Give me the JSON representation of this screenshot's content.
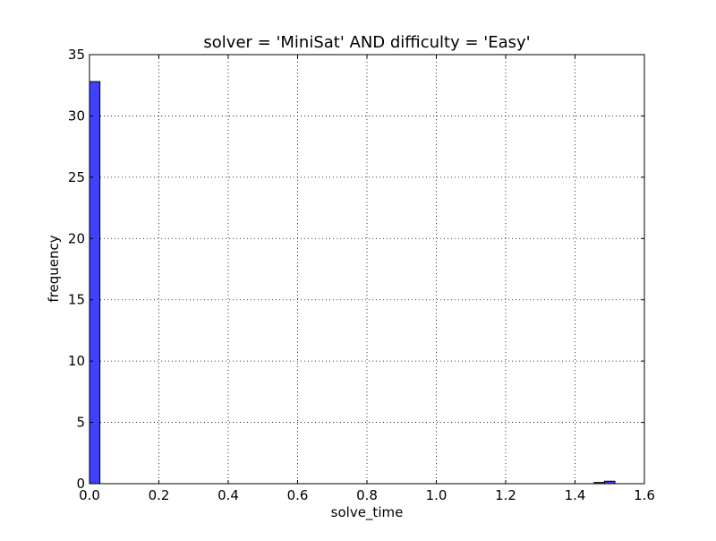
{
  "chart_data": {
    "type": "bar",
    "title": "solver = 'MiniSat' AND difficulty = 'Easy'",
    "xlabel": "solve_time",
    "ylabel": "frequency",
    "xlim": [
      0,
      1.6
    ],
    "ylim": [
      0,
      35
    ],
    "xticks": [
      "0.0",
      "0.2",
      "0.4",
      "0.6",
      "0.8",
      "1.0",
      "1.2",
      "1.4",
      "1.6"
    ],
    "yticks": [
      "0",
      "5",
      "10",
      "15",
      "20",
      "25",
      "30",
      "35"
    ],
    "grid": true,
    "bar_color": "#4040ff",
    "bars": [
      {
        "x0": 0.0,
        "x1": 0.03,
        "value": 32.8
      },
      {
        "x0": 1.455,
        "x1": 1.485,
        "value": 0.1
      },
      {
        "x0": 1.485,
        "x1": 1.515,
        "value": 0.2
      }
    ]
  }
}
